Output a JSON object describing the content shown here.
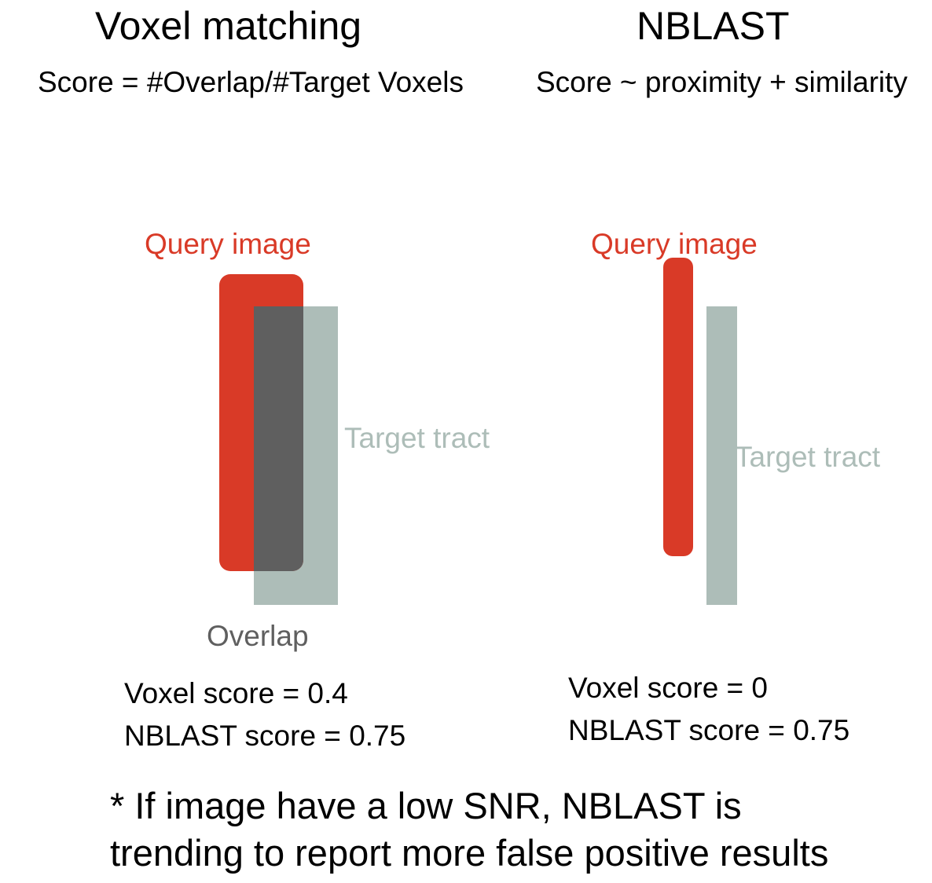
{
  "left_panel": {
    "title": "Voxel matching",
    "formula": "Score = #Overlap/#Target Voxels",
    "query_label": "Query image",
    "target_label": "Target tract",
    "overlap_label": "Overlap",
    "voxel_score": "Voxel score = 0.4",
    "nblast_score": "NBLAST score = 0.75"
  },
  "right_panel": {
    "title": "NBLAST",
    "formula": "Score ~ proximity + similarity",
    "query_label": "Query image",
    "target_label": "Target tract",
    "voxel_score": "Voxel score = 0",
    "nblast_score": "NBLAST score = 0.75"
  },
  "footnote": {
    "line1": "* If image have a low SNR, NBLAST is",
    "line2": "trending to report more false positive results"
  },
  "colors": {
    "query": "#d93a27",
    "target": "#adbdb8",
    "overlap": "#5f5f5f",
    "text": "#000000"
  }
}
